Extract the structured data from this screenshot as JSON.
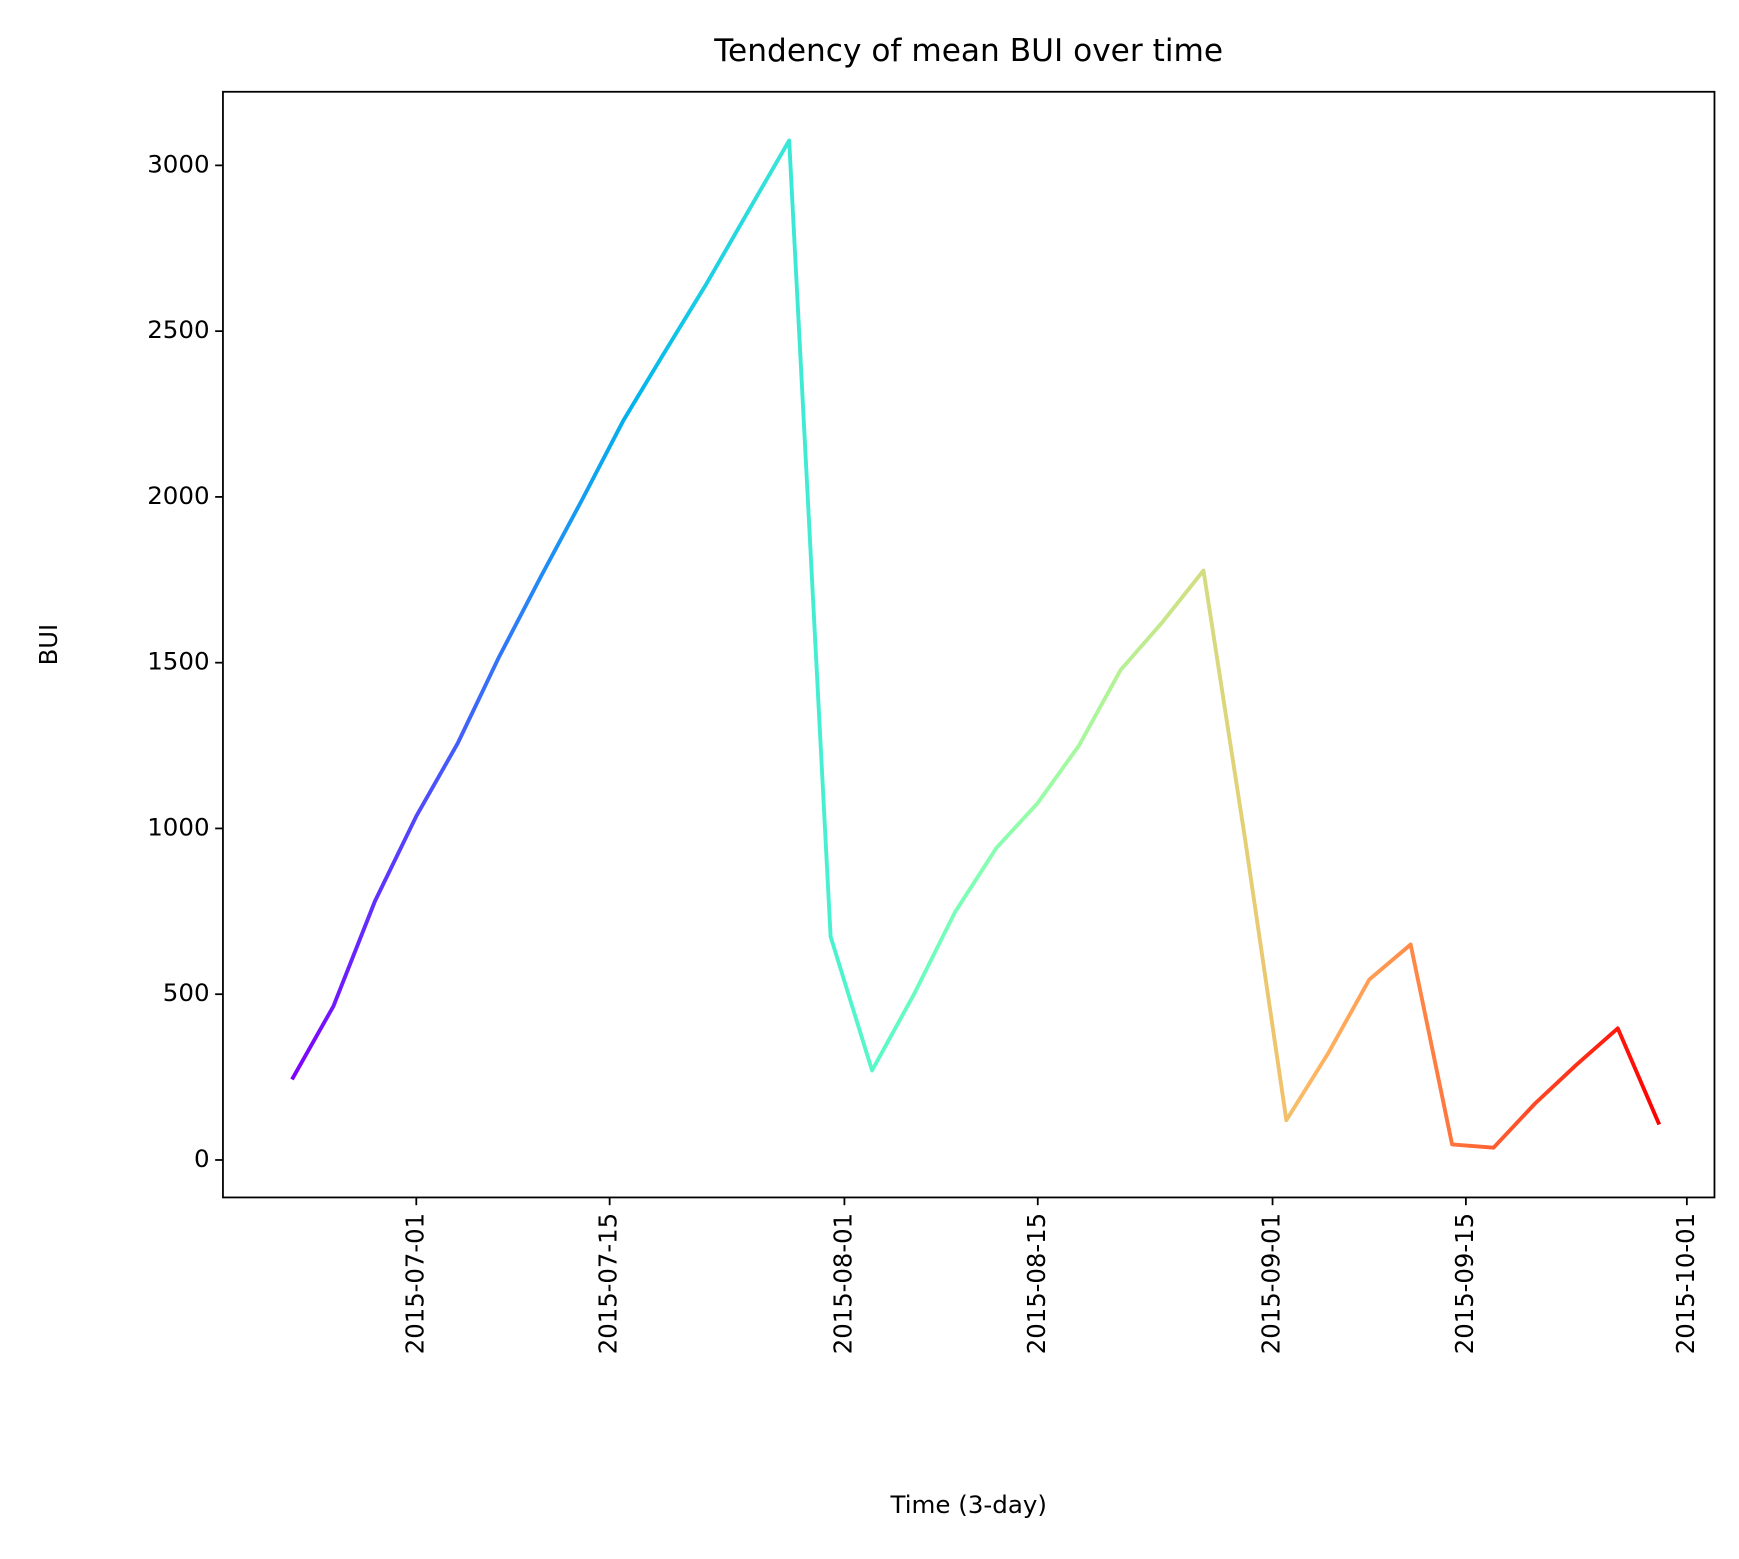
{
  "chart_data": {
    "type": "line",
    "title": "Tendency of mean BUI over time",
    "xlabel": "Time (3-day)",
    "ylabel": "BUI",
    "colormap": "rainbow",
    "series": [
      {
        "name": "BUI",
        "x": [
          "2015-06-22",
          "2015-06-25",
          "2015-06-28",
          "2015-07-01",
          "2015-07-04",
          "2015-07-07",
          "2015-07-10",
          "2015-07-13",
          "2015-07-16",
          "2015-07-19",
          "2015-07-22",
          "2015-07-25",
          "2015-07-28",
          "2015-07-31",
          "2015-08-03",
          "2015-08-06",
          "2015-08-09",
          "2015-08-12",
          "2015-08-15",
          "2015-08-18",
          "2015-08-21",
          "2015-08-24",
          "2015-08-27",
          "2015-08-30",
          "2015-09-02",
          "2015-09-05",
          "2015-09-08",
          "2015-09-11",
          "2015-09-14",
          "2015-09-17",
          "2015-09-20",
          "2015-09-23",
          "2015-09-26",
          "2015-09-29"
        ],
        "values": [
          243,
          464,
          780,
          1037,
          1257,
          1518,
          1758,
          1991,
          2231,
          2438,
          2642,
          2859,
          3075,
          674,
          270,
          497,
          747,
          941,
          1077,
          1251,
          1478,
          1621,
          1778,
          971,
          120,
          320,
          544,
          650,
          47,
          37,
          170,
          287,
          397,
          107
        ]
      }
    ],
    "xlim": [
      "2015-06-17",
      "2015-10-03"
    ],
    "xticks": [
      "2015-07-01",
      "2015-07-15",
      "2015-08-01",
      "2015-08-15",
      "2015-09-01",
      "2015-09-15",
      "2015-10-01"
    ],
    "ylim": [
      -113,
      3222
    ],
    "yticks": [
      0,
      500,
      1000,
      1500,
      2000,
      2500,
      3000
    ]
  }
}
